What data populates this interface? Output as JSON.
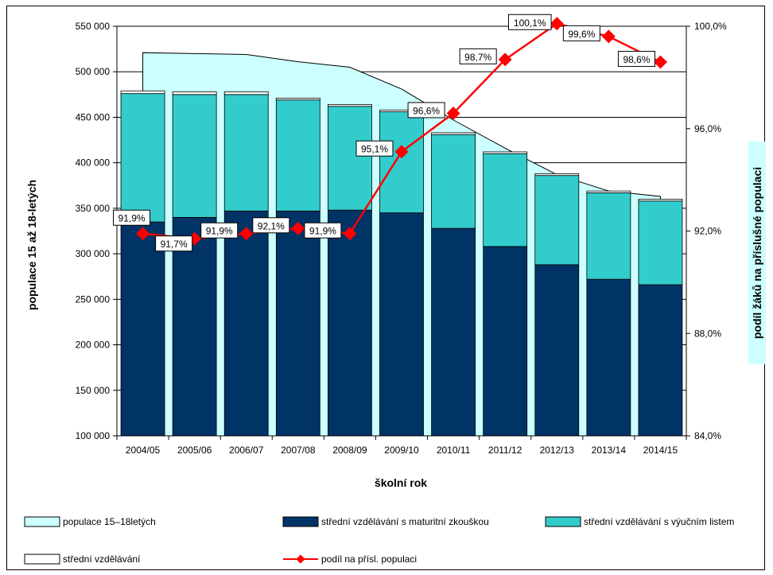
{
  "chart_data": {
    "type": "bar",
    "categories": [
      "2004/05",
      "2005/06",
      "2006/07",
      "2007/08",
      "2008/09",
      "2009/10",
      "2010/11",
      "2011/12",
      "2012/13",
      "2013/14",
      "2014/15"
    ],
    "xlabel": "školní rok",
    "ylabel": "populace 15 až 18-letých",
    "y2label": "podíl žáků na příslušné populaci",
    "ylim": [
      100000,
      550000
    ],
    "y2lim": [
      84.0,
      100.0
    ],
    "yticks": [
      "100 000",
      "150 000",
      "200 000",
      "250 000",
      "300 000",
      "350 000",
      "400 000",
      "450 000",
      "500 000",
      "550 000"
    ],
    "y2ticks": [
      "84,0%",
      "88,0%",
      "92,0%",
      "96,0%",
      "100,0%"
    ],
    "series": [
      {
        "name": "populace 15–18letých",
        "type": "area",
        "color": "#ccffff",
        "values": [
          521000,
          520000,
          519000,
          511000,
          505000,
          481000,
          447000,
          416000,
          387000,
          369000,
          363000
        ]
      },
      {
        "name": "střední vzdělávání s maturitní zkouškou",
        "type": "bar",
        "color": "#003366",
        "values": [
          335000,
          340000,
          347000,
          347000,
          348000,
          345000,
          328000,
          308000,
          288000,
          272000,
          266000
        ]
      },
      {
        "name": "střední vzdělávání s výučním listem",
        "type": "bar",
        "color": "#33cccc",
        "values": [
          141000,
          135000,
          128000,
          122000,
          114000,
          111000,
          103000,
          102000,
          98000,
          95000,
          92000
        ]
      },
      {
        "name": "střední vzdělávání",
        "type": "bar",
        "color": "#ffffff",
        "values": [
          3000,
          3000,
          3000,
          2000,
          2000,
          2000,
          2000,
          2000,
          2000,
          2000,
          2000
        ]
      },
      {
        "name": "podíl na přísl. populaci",
        "type": "line",
        "axis": "right",
        "color": "#ff0000",
        "values": [
          91.9,
          91.7,
          91.9,
          92.1,
          91.9,
          95.1,
          96.6,
          98.7,
          100.1,
          99.6,
          98.6
        ],
        "labels": [
          "91,9%",
          "91,7%",
          "91,9%",
          "92,1%",
          "91,9%",
          "95,1%",
          "96,6%",
          "98,7%",
          "100,1%",
          "99,6%",
          "98,6%"
        ]
      }
    ],
    "legend_position": "bottom",
    "grid": true
  }
}
